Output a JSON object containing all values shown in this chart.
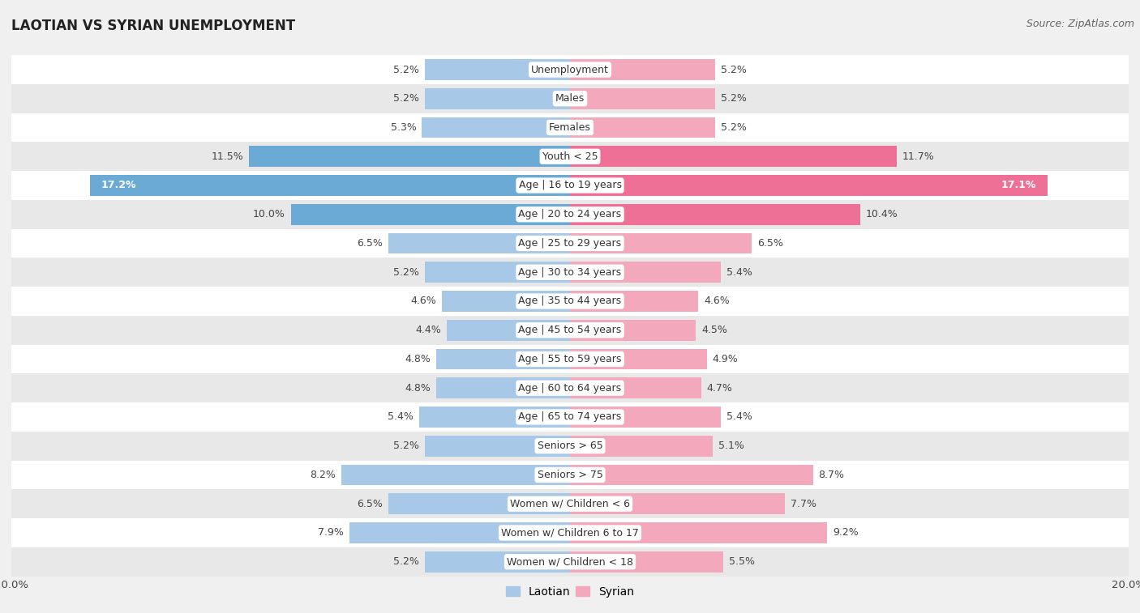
{
  "title": "LAOTIAN VS SYRIAN UNEMPLOYMENT",
  "source": "Source: ZipAtlas.com",
  "categories": [
    "Unemployment",
    "Males",
    "Females",
    "Youth < 25",
    "Age | 16 to 19 years",
    "Age | 20 to 24 years",
    "Age | 25 to 29 years",
    "Age | 30 to 34 years",
    "Age | 35 to 44 years",
    "Age | 45 to 54 years",
    "Age | 55 to 59 years",
    "Age | 60 to 64 years",
    "Age | 65 to 74 years",
    "Seniors > 65",
    "Seniors > 75",
    "Women w/ Children < 6",
    "Women w/ Children 6 to 17",
    "Women w/ Children < 18"
  ],
  "laotian": [
    5.2,
    5.2,
    5.3,
    11.5,
    17.2,
    10.0,
    6.5,
    5.2,
    4.6,
    4.4,
    4.8,
    4.8,
    5.4,
    5.2,
    8.2,
    6.5,
    7.9,
    5.2
  ],
  "syrian": [
    5.2,
    5.2,
    5.2,
    11.7,
    17.1,
    10.4,
    6.5,
    5.4,
    4.6,
    4.5,
    4.9,
    4.7,
    5.4,
    5.1,
    8.7,
    7.7,
    9.2,
    5.5
  ],
  "laotian_color": "#a8c8e8",
  "syrian_color": "#f4a8bc",
  "laotian_dark_color": "#6aaad4",
  "syrian_dark_color": "#ee7096",
  "bg_color": "#f0f0f0",
  "row_white": "#ffffff",
  "row_gray": "#e8e8e8",
  "max_val": 20.0,
  "bar_height": 0.72,
  "label_fontsize": 9.0,
  "title_fontsize": 12,
  "source_fontsize": 9,
  "value_fontsize": 9.0
}
